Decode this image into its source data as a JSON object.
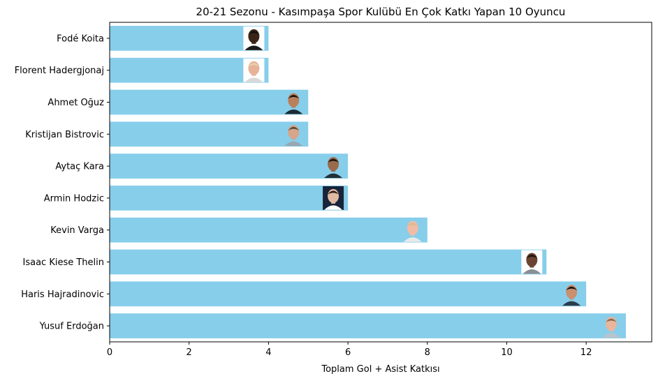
{
  "chart_data": {
    "type": "bar",
    "orientation": "horizontal",
    "title": "20-21 Sezonu - Kasımpaşa Spor Kulübü En Çok Katkı Yapan 10 Oyuncu",
    "xlabel": "Toplam Gol + Asist Katkısı",
    "ylabel": "",
    "xlim": [
      0,
      13.65
    ],
    "xticks": [
      "0",
      "2",
      "4",
      "6",
      "8",
      "10",
      "12"
    ],
    "bar_color": "#87ceeb",
    "grid": false,
    "categories": [
      "Fodé Koita",
      "Florent Hadergjonaj",
      "Ahmet Oğuz",
      "Kristijan Bistrovic",
      "Aytaç Kara",
      "Armin Hodzic",
      "Kevin Varga",
      "Isaac Kiese Thelin",
      "Haris Hajradinovic",
      "Yusuf Erdoğan"
    ],
    "values": [
      4,
      4,
      5,
      5,
      6,
      6,
      8,
      11,
      12,
      13
    ],
    "photo_icons": [
      {
        "name": "player-photo-icon",
        "bg": "#ffffff",
        "skin": "#3a2418",
        "hair": "#111111",
        "shirt": "#1a1a1a"
      },
      {
        "name": "player-photo-icon",
        "bg": "#ffffff",
        "skin": "#e7b29a",
        "hair": "#e8d3a8",
        "shirt": "#d9d9d9"
      },
      {
        "name": "player-photo-icon",
        "bg": "#87ceeb",
        "skin": "#b9805c",
        "hair": "#1b1410",
        "shirt": "#1c2a33"
      },
      {
        "name": "player-photo-icon",
        "bg": "#87ceeb",
        "skin": "#d6a58a",
        "hair": "#5a4a3e",
        "shirt": "#9aa7b2"
      },
      {
        "name": "player-photo-icon",
        "bg": "#87ceeb",
        "skin": "#9a6a4d",
        "hair": "#15100c",
        "shirt": "#243038"
      },
      {
        "name": "player-photo-icon",
        "bg": "#17243a",
        "skin": "#e2b9a2",
        "hair": "#2a1c14",
        "shirt": "#ffffff"
      },
      {
        "name": "player-photo-icon",
        "bg": "#87ceeb",
        "skin": "#f0bca4",
        "hair": "#d9b98a",
        "shirt": "#e9e9e9"
      },
      {
        "name": "player-photo-icon",
        "bg": "#ffffff",
        "skin": "#6b4432",
        "hair": "#1a1410",
        "shirt": "#8a8f96"
      },
      {
        "name": "player-photo-icon",
        "bg": "#87ceeb",
        "skin": "#c98f6e",
        "hair": "#161616",
        "shirt": "#2a3c4a"
      },
      {
        "name": "player-photo-icon",
        "bg": "#87ceeb",
        "skin": "#e8b69c",
        "hair": "#8a6b50",
        "shirt": "#b9c3cc"
      }
    ]
  }
}
